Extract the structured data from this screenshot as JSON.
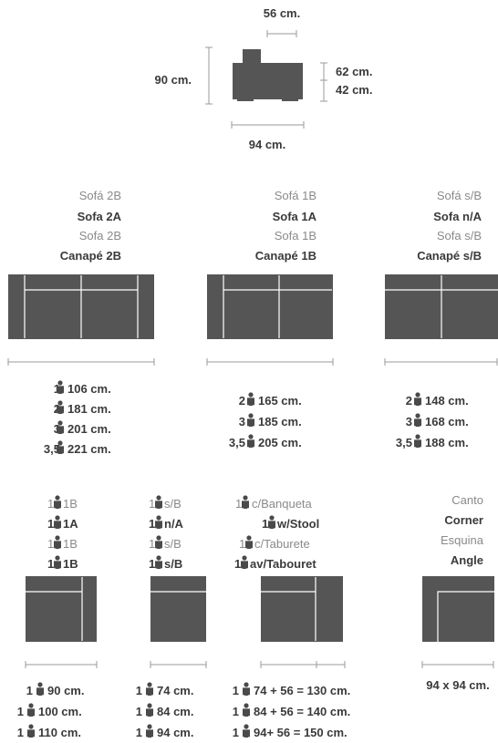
{
  "top": {
    "width_top": "56 cm.",
    "height_total": "90 cm.",
    "seat_height_1": "62 cm.",
    "seat_height_2": "42 cm.",
    "depth": "94 cm."
  },
  "row1": [
    {
      "labels": [
        "Sofá 2B",
        "Sofa 2A",
        "Sofa 2B",
        "Canapé 2B"
      ],
      "sizes": [
        {
          "seats": "1",
          "size": "106 cm."
        },
        {
          "seats": "2",
          "size": "181 cm."
        },
        {
          "seats": "3",
          "size": "201 cm."
        },
        {
          "seats": "3,5",
          "size": "221 cm."
        }
      ]
    },
    {
      "labels": [
        "Sofá 1B",
        "Sofa 1A",
        "Sofa 1B",
        "Canapé 1B"
      ],
      "sizes": [
        {
          "seats": "2",
          "size": "165 cm."
        },
        {
          "seats": "3",
          "size": "185 cm."
        },
        {
          "seats": "3,5",
          "size": "205 cm."
        }
      ]
    },
    {
      "labels": [
        "Sofá s/B",
        "Sofa n/A",
        "Sofa s/B",
        "Canapé s/B"
      ],
      "sizes": [
        {
          "seats": "2",
          "size": "148 cm."
        },
        {
          "seats": "3",
          "size": "168 cm."
        },
        {
          "seats": "3,5",
          "size": "188 cm."
        }
      ]
    }
  ],
  "row2": [
    {
      "labels": [
        "1B",
        "1A",
        "1B",
        "1B"
      ],
      "sizes": [
        {
          "seats": "1",
          "size": "90 cm."
        },
        {
          "seats": "1",
          "size": "100 cm."
        },
        {
          "seats": "1",
          "size": "110 cm."
        }
      ]
    },
    {
      "labels": [
        "s/B",
        "n/A",
        "s/B",
        "s/B"
      ],
      "sizes": [
        {
          "seats": "1",
          "size": "74 cm."
        },
        {
          "seats": "1",
          "size": "84 cm."
        },
        {
          "seats": "1",
          "size": "94 cm."
        }
      ]
    },
    {
      "labels": [
        "c/Banqueta",
        "w/Stool",
        "c/Taburete",
        "av/Tabouret"
      ],
      "sizes": [
        {
          "seats": "1",
          "size": "74 + 56 = 130 cm."
        },
        {
          "seats": "1",
          "size": "84 + 56 = 140 cm."
        },
        {
          "seats": "1",
          "size": "94+ 56 = 150 cm."
        }
      ]
    },
    {
      "labels": [
        "Canto",
        "Corner",
        "Esquina",
        "Angle"
      ],
      "sizes": [
        {
          "seats": "",
          "size": "94 x 94 cm."
        }
      ]
    }
  ]
}
